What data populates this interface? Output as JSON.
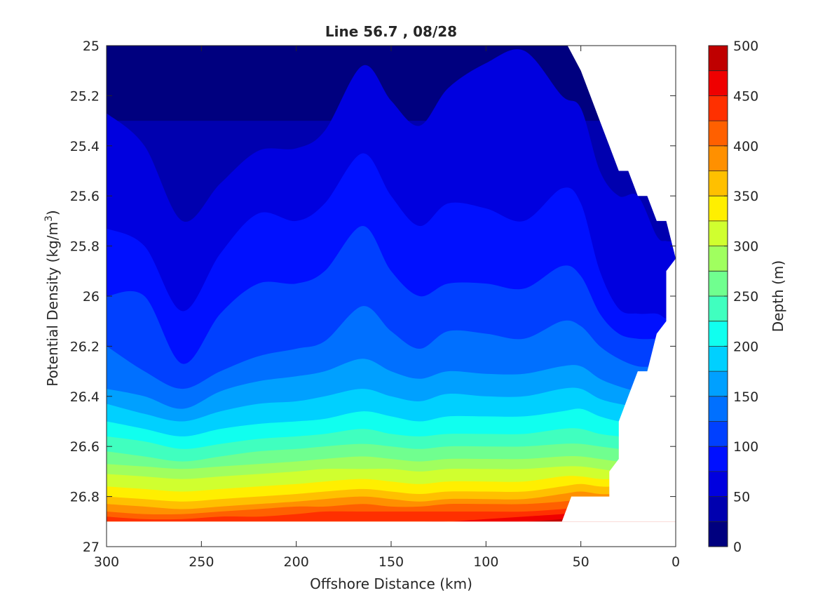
{
  "chart_data": {
    "type": "contour",
    "title": "Line 56.7 , 08/28",
    "xlabel": "Offshore Distance (km)",
    "ylabel": {
      "text": "Potential Density (kg/m",
      "sup": "3",
      "tail": ")"
    },
    "colorbar_label": "Depth (m)",
    "xlim": [
      300,
      0
    ],
    "ylim": [
      25,
      27
    ],
    "y_reversed": true,
    "x_reversed": true,
    "x_ticks": [
      "300",
      "250",
      "200",
      "150",
      "100",
      "50",
      "0"
    ],
    "y_ticks": [
      "25",
      "25.2",
      "25.4",
      "25.6",
      "25.8",
      "26",
      "26.2",
      "26.4",
      "26.6",
      "26.8",
      "27"
    ],
    "colorbar_ticks": [
      "0",
      "50",
      "100",
      "150",
      "200",
      "250",
      "300",
      "350",
      "400",
      "450",
      "500"
    ],
    "contour_levels": [
      0,
      25,
      50,
      75,
      100,
      125,
      150,
      175,
      200,
      225,
      250,
      275,
      300,
      325,
      350,
      375,
      400,
      425,
      450,
      475,
      500
    ],
    "colormap": "jet",
    "colors": [
      "#00007f",
      "#0000af",
      "#0000df",
      "#0010ff",
      "#0040ff",
      "#0070ff",
      "#00a0ff",
      "#00d0ff",
      "#10ffef",
      "#40ffbf",
      "#70ff8f",
      "#a0ff5f",
      "#d0ff2f",
      "#ffef00",
      "#ffc000",
      "#ff9000",
      "#ff6000",
      "#ff3000",
      "#ef0000",
      "#bf0000"
    ],
    "x_nodes": [
      300,
      280,
      260,
      240,
      220,
      200,
      185,
      165,
      150,
      135,
      120,
      100,
      80,
      60,
      50,
      40,
      30,
      20,
      10,
      5
    ],
    "isopycnal_depth_lines": [
      {
        "depth": 25,
        "sigma": [
          25.3,
          25.3,
          25.3,
          25.3,
          25.3,
          25.3,
          25.3,
          25.3,
          25.3,
          25.3,
          25.3,
          25.3,
          25.3,
          25.3,
          25.3,
          25.3,
          25.3,
          25.3,
          25.3,
          25.3
        ]
      },
      {
        "depth": 50,
        "sigma": [
          25.27,
          25.4,
          25.7,
          25.55,
          25.42,
          25.41,
          25.34,
          25.08,
          25.22,
          25.32,
          25.17,
          25.07,
          25.02,
          25.2,
          25.25,
          25.5,
          25.6,
          25.6,
          25.76,
          25.78
        ]
      },
      {
        "depth": 75,
        "sigma": [
          25.73,
          25.8,
          26.06,
          25.83,
          25.67,
          25.7,
          25.63,
          25.43,
          25.6,
          25.72,
          25.63,
          25.65,
          25.7,
          25.57,
          25.63,
          25.9,
          26.05,
          26.07,
          26.07,
          26.09
        ]
      },
      {
        "depth": 100,
        "sigma": [
          26.0,
          26.0,
          26.27,
          26.07,
          25.95,
          25.95,
          25.9,
          25.72,
          25.9,
          26.0,
          25.95,
          25.95,
          25.97,
          25.88,
          25.92,
          26.07,
          26.15,
          26.17,
          26.17,
          26.17
        ]
      },
      {
        "depth": 125,
        "sigma": [
          26.2,
          26.3,
          26.37,
          26.3,
          26.24,
          26.21,
          26.18,
          26.04,
          26.14,
          26.21,
          26.14,
          26.15,
          26.17,
          26.1,
          26.12,
          26.2,
          26.25,
          26.28,
          26.28,
          26.28
        ]
      },
      {
        "depth": 150,
        "sigma": [
          26.37,
          26.4,
          26.45,
          26.38,
          26.34,
          26.32,
          26.3,
          26.25,
          26.3,
          26.33,
          26.3,
          26.31,
          26.31,
          26.28,
          26.28,
          26.33,
          26.36,
          26.38,
          26.38,
          26.38
        ]
      },
      {
        "depth": 175,
        "sigma": [
          26.43,
          26.47,
          26.5,
          26.46,
          26.43,
          26.42,
          26.4,
          26.37,
          26.4,
          26.42,
          26.39,
          26.4,
          26.4,
          26.37,
          26.37,
          26.41,
          26.43,
          26.44,
          26.44,
          26.44
        ]
      },
      {
        "depth": 200,
        "sigma": [
          26.5,
          26.53,
          26.56,
          26.53,
          26.51,
          26.5,
          26.49,
          26.46,
          26.48,
          26.5,
          26.48,
          26.48,
          26.48,
          26.46,
          26.45,
          26.48,
          26.5,
          26.51,
          26.51,
          26.51
        ]
      },
      {
        "depth": 225,
        "sigma": [
          26.56,
          26.58,
          26.61,
          26.59,
          26.57,
          26.56,
          26.55,
          26.53,
          26.55,
          26.56,
          26.55,
          26.55,
          26.55,
          26.53,
          26.53,
          26.55,
          26.56,
          26.57,
          26.57,
          26.57
        ]
      },
      {
        "depth": 250,
        "sigma": [
          26.62,
          26.64,
          26.66,
          26.64,
          26.62,
          26.61,
          26.6,
          26.59,
          26.6,
          26.61,
          26.6,
          26.6,
          26.6,
          26.59,
          26.59,
          26.6,
          26.61,
          26.62,
          26.62,
          26.62
        ]
      },
      {
        "depth": 275,
        "sigma": [
          26.67,
          26.68,
          26.69,
          26.68,
          26.67,
          26.66,
          26.65,
          26.64,
          26.65,
          26.66,
          26.65,
          26.65,
          26.65,
          26.64,
          26.64,
          26.65,
          26.66,
          26.66,
          26.66,
          26.66
        ]
      },
      {
        "depth": 300,
        "sigma": [
          26.71,
          26.72,
          26.73,
          26.72,
          26.71,
          26.7,
          26.69,
          26.69,
          26.69,
          26.7,
          26.69,
          26.69,
          26.69,
          26.68,
          26.68,
          26.69,
          26.7,
          26.7,
          26.7,
          26.7
        ]
      },
      {
        "depth": 325,
        "sigma": [
          26.76,
          26.77,
          26.78,
          26.77,
          26.76,
          26.75,
          26.74,
          26.73,
          26.74,
          26.75,
          26.74,
          26.74,
          26.74,
          26.72,
          26.72,
          26.73,
          26.73,
          26.73,
          26.73,
          26.73
        ]
      },
      {
        "depth": 350,
        "sigma": [
          26.8,
          26.81,
          26.82,
          26.81,
          26.8,
          26.79,
          26.78,
          26.77,
          26.78,
          26.79,
          26.78,
          26.78,
          26.78,
          26.76,
          26.75,
          26.76,
          26.76,
          26.76,
          26.76,
          26.76
        ]
      },
      {
        "depth": 375,
        "sigma": [
          26.83,
          26.84,
          26.85,
          26.84,
          26.83,
          26.82,
          26.81,
          26.8,
          26.81,
          26.82,
          26.81,
          26.81,
          26.81,
          26.79,
          26.78,
          26.79,
          26.79,
          26.79,
          26.79,
          26.79
        ]
      },
      {
        "depth": 400,
        "sigma": [
          26.86,
          26.87,
          26.87,
          26.86,
          26.85,
          26.84,
          26.84,
          26.83,
          26.84,
          26.84,
          26.83,
          26.83,
          26.83,
          26.82,
          26.81,
          26.81,
          26.81,
          26.81,
          26.81,
          26.81
        ]
      },
      {
        "depth": 425,
        "sigma": [
          26.88,
          26.89,
          26.89,
          26.88,
          26.88,
          26.87,
          26.86,
          26.86,
          26.86,
          26.86,
          26.86,
          26.86,
          26.86,
          26.85,
          26.84,
          26.84,
          26.84,
          26.84,
          26.84,
          26.84
        ]
      },
      {
        "depth": 450,
        "sigma": [
          26.9,
          26.9,
          26.9,
          26.9,
          26.9,
          26.9,
          26.9,
          26.9,
          26.9,
          26.9,
          26.9,
          26.89,
          26.88,
          26.87,
          26.86,
          26.86,
          26.86,
          26.86,
          26.86,
          26.86
        ]
      },
      {
        "depth": 475,
        "sigma": [
          26.9,
          26.9,
          26.9,
          26.9,
          26.9,
          26.9,
          26.9,
          26.9,
          26.9,
          26.9,
          26.9,
          26.9,
          26.9,
          26.89,
          26.88,
          26.88,
          26.88,
          26.88,
          26.88,
          26.88
        ]
      }
    ],
    "data_boundary": {
      "top_right": [
        [
          57,
          25.0
        ],
        [
          50,
          25.1
        ],
        [
          45,
          25.2
        ],
        [
          40,
          25.3
        ],
        [
          35,
          25.4
        ],
        [
          30,
          25.5
        ],
        [
          25,
          25.5
        ],
        [
          20,
          25.6
        ],
        [
          15,
          25.6
        ],
        [
          10,
          25.7
        ],
        [
          5,
          25.7
        ],
        [
          0,
          25.85
        ]
      ],
      "right_edge": [
        [
          0,
          25.85
        ],
        [
          5,
          25.9
        ],
        [
          5,
          26.1
        ],
        [
          10,
          26.15
        ],
        [
          15,
          26.3
        ],
        [
          20,
          26.3
        ],
        [
          25,
          26.4
        ],
        [
          30,
          26.5
        ],
        [
          30,
          26.65
        ],
        [
          35,
          26.7
        ],
        [
          35,
          26.8
        ],
        [
          55,
          26.8
        ],
        [
          60,
          26.9
        ]
      ],
      "bottom_sigma": 26.9
    },
    "grid": false,
    "colorbar_position": "right"
  }
}
